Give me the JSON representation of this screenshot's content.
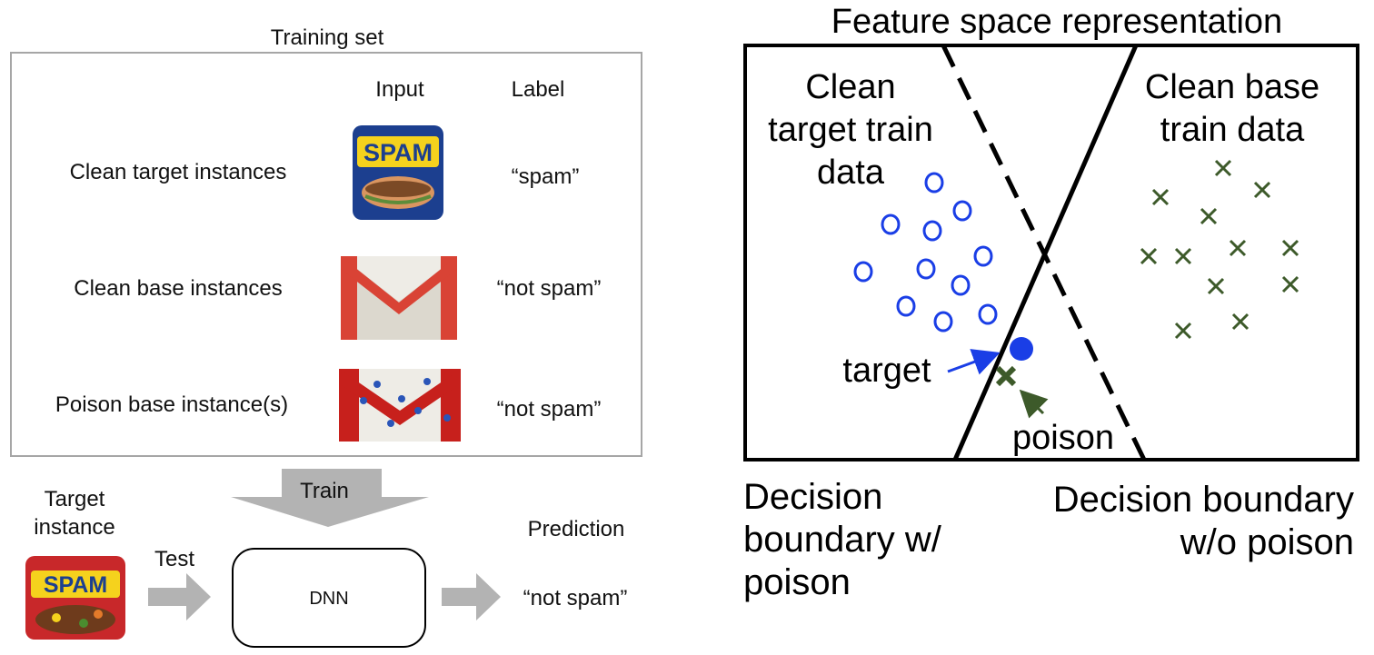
{
  "left": {
    "training_set_title": "Training set",
    "column_input": "Input",
    "column_label": "Label",
    "rows": [
      {
        "name": "Clean target instances",
        "label": "“spam”",
        "icon": "spam-can-icon"
      },
      {
        "name": "Clean base instances",
        "label": "“not spam”",
        "icon": "gmail-icon"
      },
      {
        "name": "Poison base instance(s)",
        "label": "“not spam”",
        "icon": "poisoned-gmail-icon"
      }
    ],
    "spam_can_text": "SPAM",
    "train_label": "Train",
    "target_instance_line1": "Target",
    "target_instance_line2": "instance",
    "test_label": "Test",
    "dnn_label": "DNN",
    "prediction_title": "Prediction",
    "prediction_value": "“not spam”"
  },
  "right": {
    "title": "Feature space representation",
    "clean_target_line1": "Clean",
    "clean_target_line2": "target train",
    "clean_target_line3": "data",
    "clean_base_line1": "Clean base",
    "clean_base_line2": "train data",
    "target_label": "target",
    "poison_label": "poison",
    "with_poison_line1": "Decision",
    "with_poison_line2": "boundary w/",
    "with_poison_line3": "poison",
    "without_poison_line1": "Decision boundary",
    "without_poison_line2": "w/o poison"
  },
  "colors": {
    "circle_blue": "#1a3ee6",
    "cross_green": "#3d5a2a",
    "arrow_gray": "#b3b3b3",
    "border_gray": "#a6a6a6",
    "gmail_red": "#d94335",
    "spam_blue": "#1c3f8f",
    "spam_yellow": "#f5d21d"
  }
}
